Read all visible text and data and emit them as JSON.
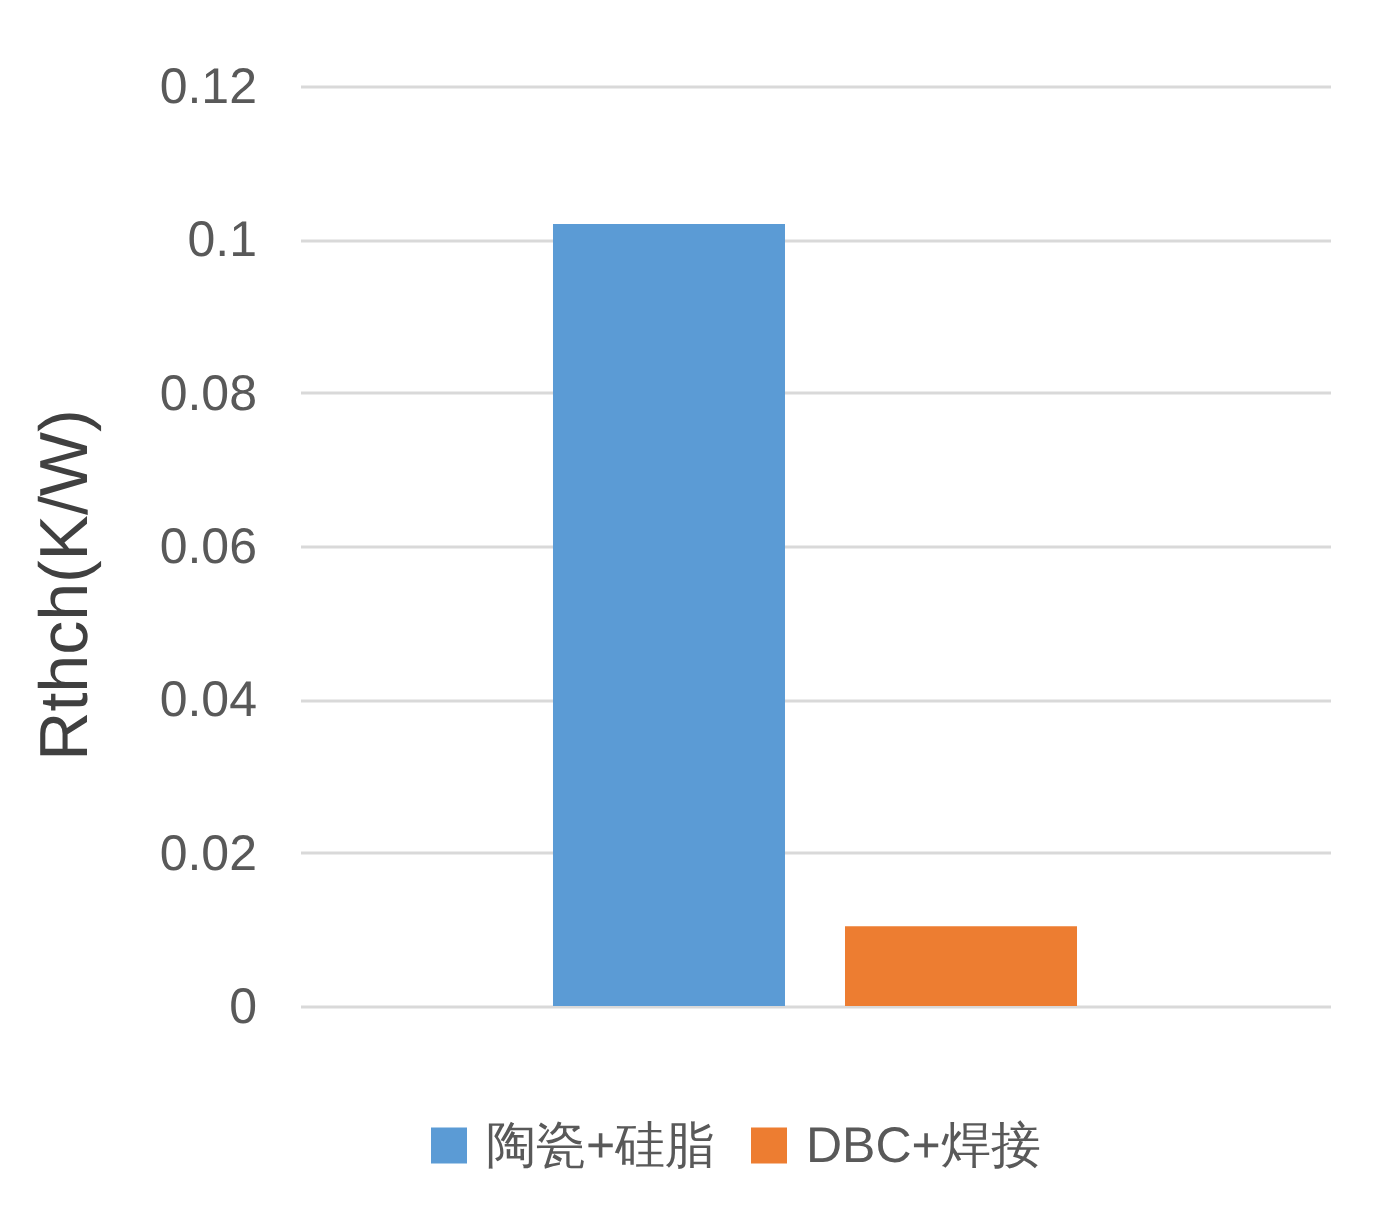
{
  "chart_data": {
    "type": "bar",
    "categories": [
      null
    ],
    "ylabel": "Rthch(K/W)",
    "series": [
      {
        "name": "陶瓷+硅脂",
        "color": "#5b9bd5",
        "values": [
          0.102
        ]
      },
      {
        "name": "DBC+焊接",
        "color": "#ed7d31",
        "values": [
          0.0104
        ]
      }
    ],
    "ylim": [
      0,
      0.12
    ],
    "yticks": [
      0,
      0.02,
      0.04,
      0.06,
      0.08,
      0.1,
      0.12
    ],
    "grid": "y",
    "legend": "bottom",
    "tick_labels": "y"
  }
}
